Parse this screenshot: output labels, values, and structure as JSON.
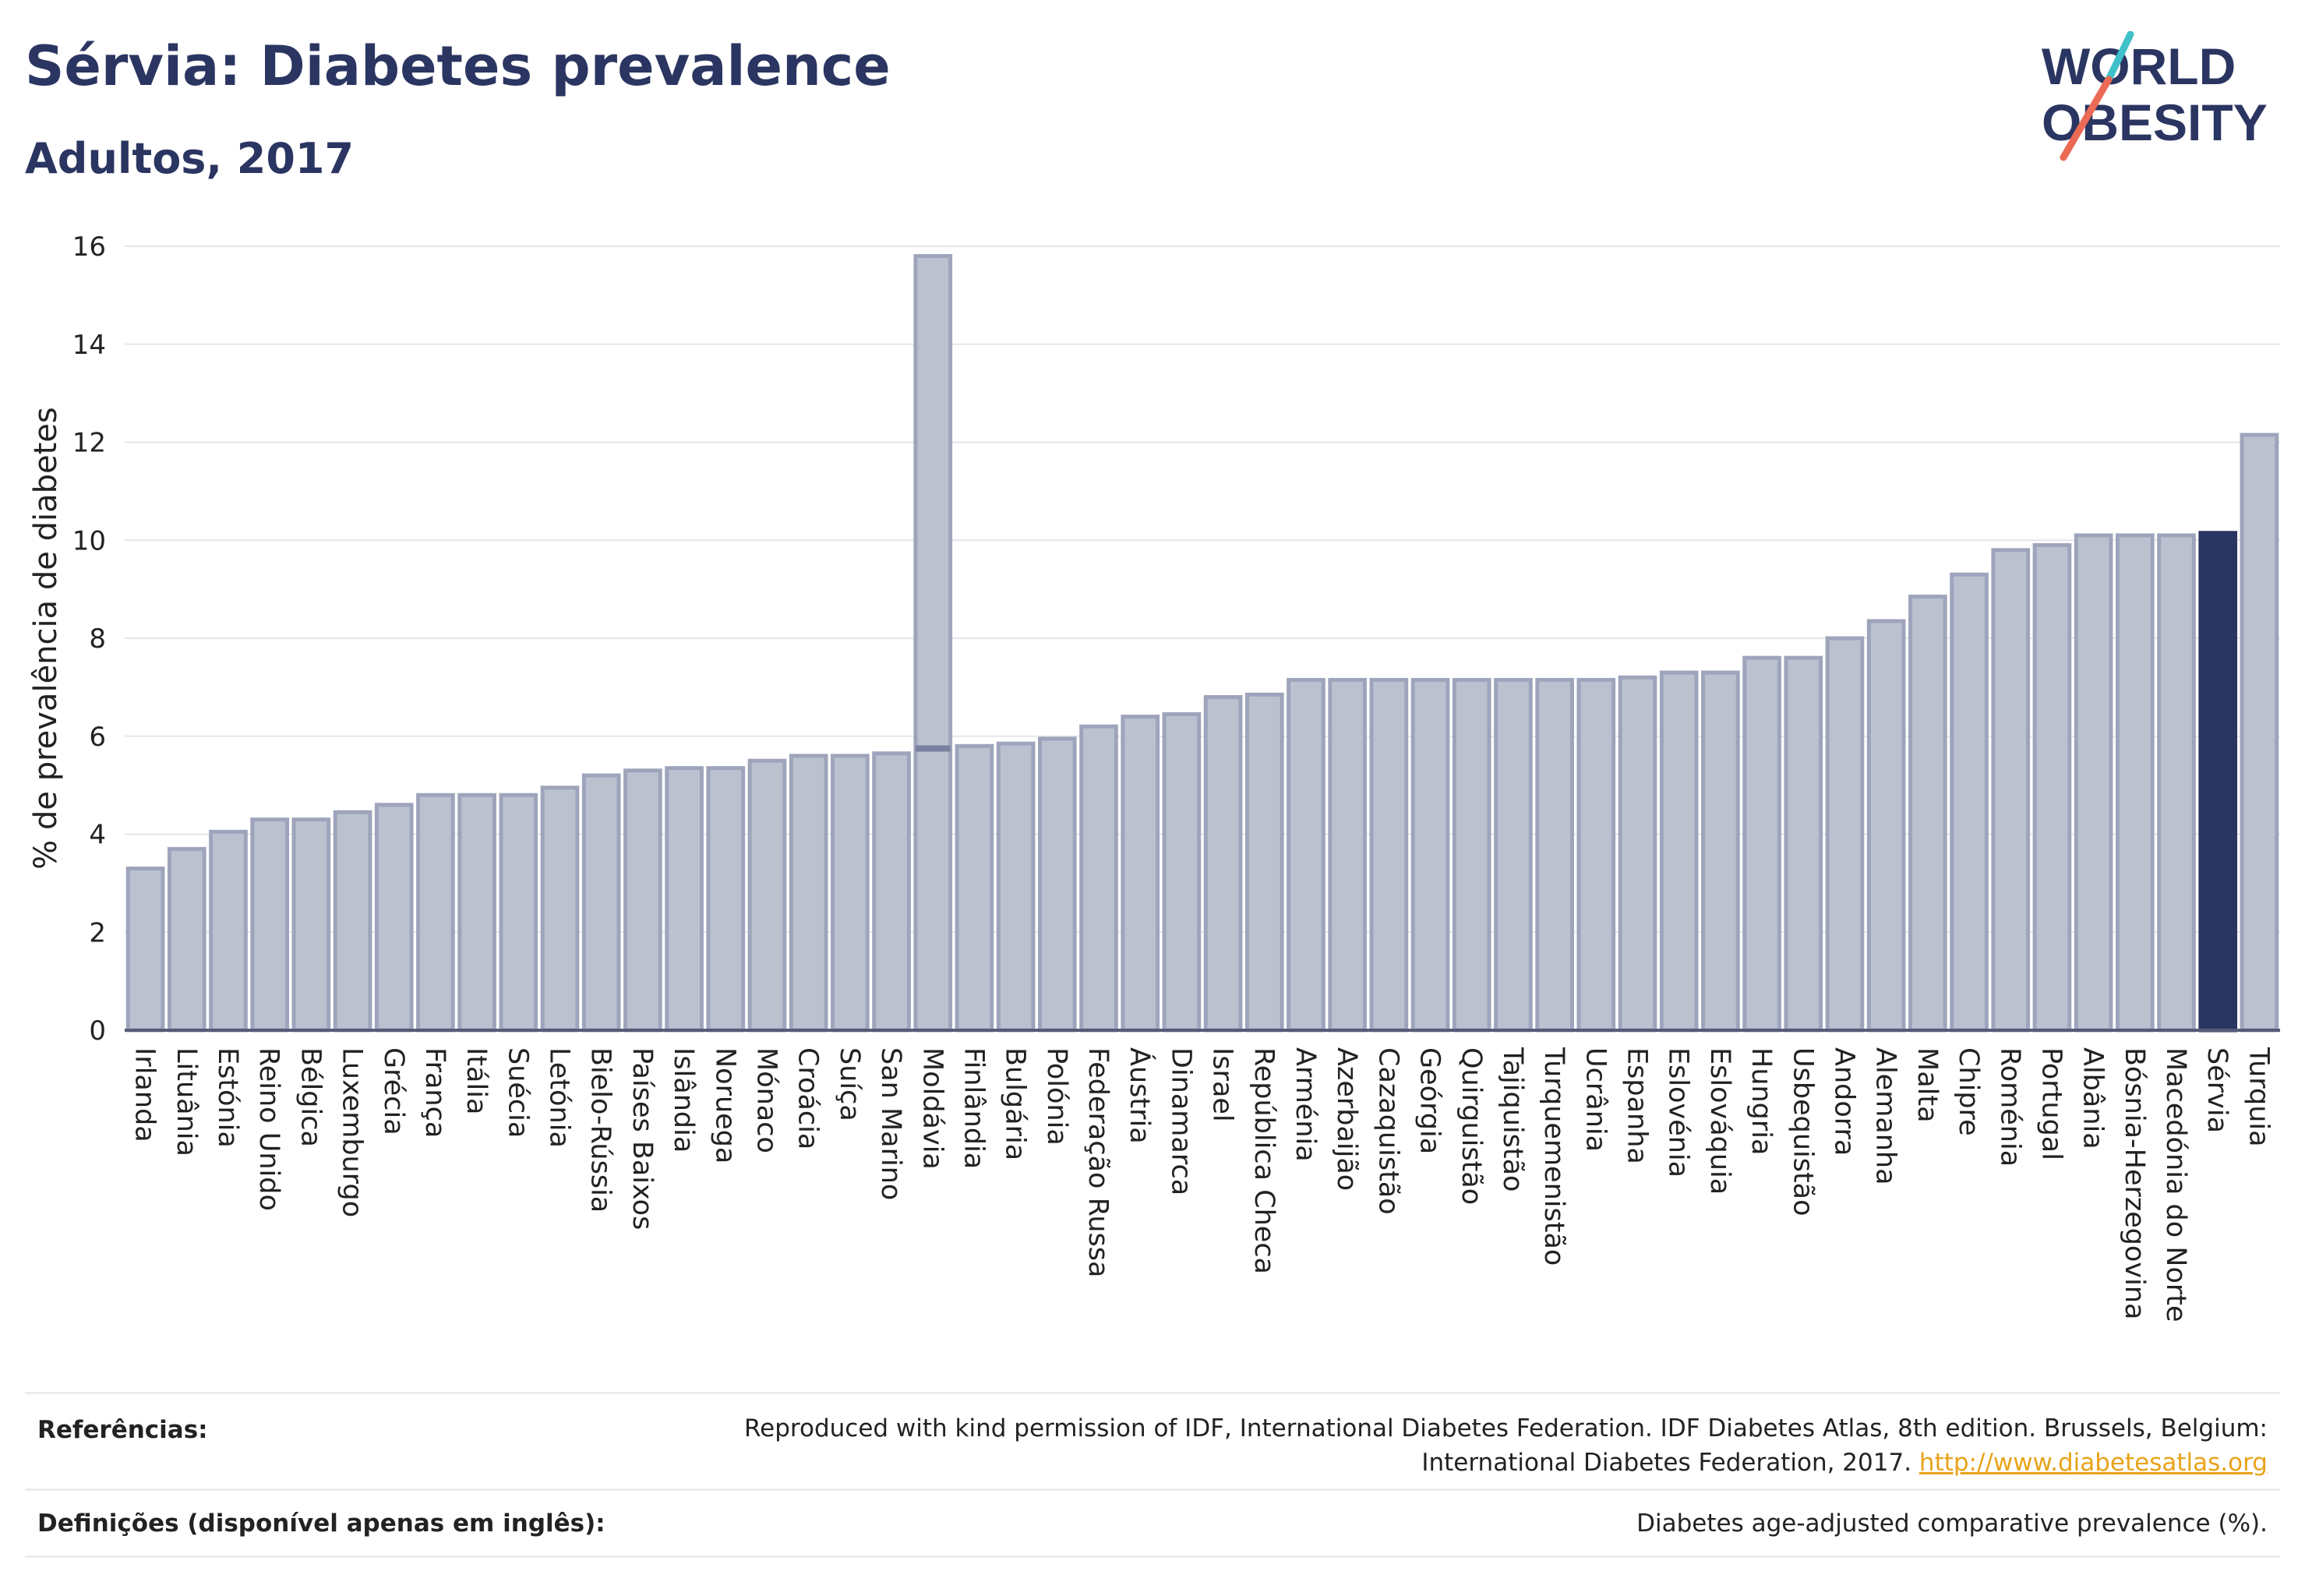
{
  "header": {
    "title": "Sérvia: Diabetes prevalence",
    "subtitle": "Adultos, 2017"
  },
  "logo": {
    "line1": "WORLD",
    "line2": "OBESITY",
    "name": "world-obesity-logo"
  },
  "colors": {
    "bar": "#bcc1d0",
    "bar_edge": "#9ea4bb",
    "highlight": "#2b3561",
    "grid": "#e4e6ec",
    "text": "#2b3561",
    "link": "#e8a31a"
  },
  "chart_data": {
    "type": "bar",
    "title": "Sérvia: Diabetes prevalence",
    "subtitle": "Adultos, 2017",
    "xlabel": "",
    "ylabel": "% de prevalência de diabetes",
    "ylim": [
      0,
      16
    ],
    "yticks": [
      0,
      2,
      4,
      6,
      8,
      10,
      12,
      14,
      16
    ],
    "grid": true,
    "highlight": "Sérvia",
    "categories": [
      "Irlanda",
      "Lituânia",
      "Estónia",
      "Reino Unido",
      "Bélgica",
      "Luxemburgo",
      "Grécia",
      "França",
      "Itália",
      "Suécia",
      "Letónia",
      "Bielo-Rússia",
      "Países Baixos",
      "Islândia",
      "Noruega",
      "Mónaco",
      "Croácia",
      "Suíça",
      "San Marino",
      "Moldávia",
      "Finlândia",
      "Bulgária",
      "Polónia",
      "Federação Russa",
      "Áustria",
      "Dinamarca",
      "Israel",
      "República Checa",
      "Arménia",
      "Azerbaijão",
      "Cazaquistão",
      "Geórgia",
      "Quirguistão",
      "Tajiquistão",
      "Turquemenistão",
      "Ucrânia",
      "Espanha",
      "Eslovénia",
      "Eslováquia",
      "Hungria",
      "Usbequistão",
      "Andorra",
      "Alemanha",
      "Malta",
      "Chipre",
      "Roménia",
      "Portugal",
      "Albânia",
      "Bósnia-Herzegovina",
      "Macedónia do Norte",
      "Sérvia",
      "Turquia"
    ],
    "values": [
      3.3,
      3.7,
      4.05,
      4.3,
      4.3,
      4.45,
      4.6,
      4.8,
      4.8,
      4.8,
      4.95,
      5.2,
      5.3,
      5.35,
      5.35,
      5.5,
      5.6,
      5.6,
      5.65,
      15.8,
      5.8,
      5.85,
      5.95,
      6.2,
      6.4,
      6.45,
      6.8,
      6.85,
      7.15,
      7.15,
      7.15,
      7.15,
      7.15,
      7.15,
      7.15,
      7.15,
      7.2,
      7.3,
      7.3,
      7.6,
      7.6,
      8.0,
      8.35,
      8.85,
      9.3,
      9.8,
      9.9,
      10.1,
      10.1,
      10.1,
      10.15,
      12.15
    ],
    "range_low": {
      "Moldávia": 5.75
    }
  },
  "references": {
    "refs_label": "Referências:",
    "refs_text_1": "Reproduced with kind permission of IDF, International Diabetes Federation. IDF Diabetes Atlas, 8th edition. Brussels, Belgium:",
    "refs_text_2": "International Diabetes Federation, 2017.",
    "refs_link": "http://www.diabetesatlas.org",
    "def_label": "Definições (disponível apenas em inglês):",
    "def_text": "Diabetes age-adjusted comparative prevalence (%)."
  }
}
